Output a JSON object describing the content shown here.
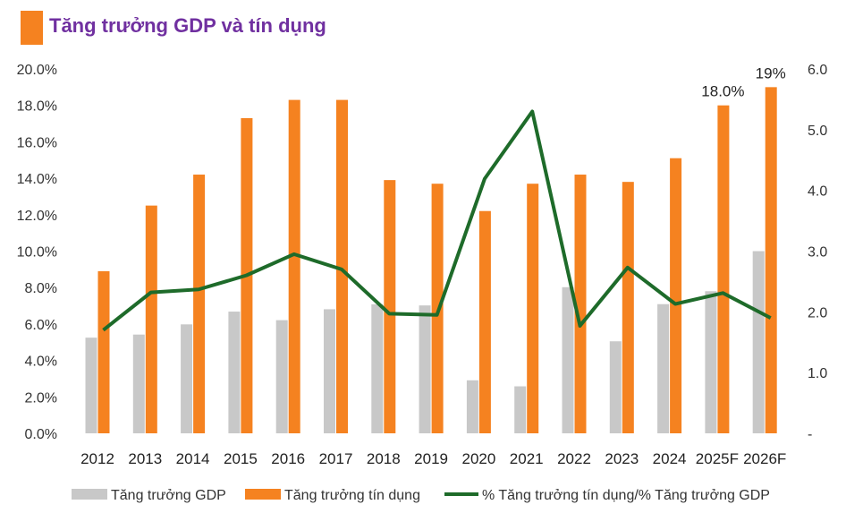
{
  "colors": {
    "title": "#7030A0",
    "accent_block": "#F58220",
    "gdp": "#C8C8C8",
    "credit": "#F58220",
    "ratio": "#1E6B2A"
  },
  "chart_data": {
    "type": "bar",
    "title": "Tăng trưởng GDP và tín dụng",
    "categories": [
      "2012",
      "2013",
      "2014",
      "2015",
      "2016",
      "2017",
      "2018",
      "2019",
      "2020",
      "2021",
      "2022",
      "2023",
      "2024",
      "2025F",
      "2026F"
    ],
    "series": [
      {
        "name": "Tăng trưởng GDP",
        "axis": "left",
        "kind": "bar",
        "values": [
          5.25,
          5.42,
          5.98,
          6.68,
          6.21,
          6.81,
          7.08,
          7.02,
          2.91,
          2.58,
          8.02,
          5.05,
          7.09,
          7.8,
          10.0
        ]
      },
      {
        "name": "Tăng trưởng tín dụng",
        "axis": "left",
        "kind": "bar",
        "values": [
          8.9,
          12.5,
          14.2,
          17.3,
          18.3,
          18.3,
          13.9,
          13.7,
          12.2,
          13.7,
          14.2,
          13.8,
          15.1,
          18.0,
          19.0
        ]
      },
      {
        "name": "% Tăng trưởng tín dụng/% Tăng trưởng GDP",
        "axis": "right",
        "kind": "line",
        "values": [
          1.7,
          2.32,
          2.37,
          2.6,
          2.95,
          2.7,
          1.97,
          1.95,
          4.19,
          5.3,
          1.77,
          2.73,
          2.13,
          2.31,
          1.9
        ]
      }
    ],
    "left_axis": {
      "ylim": [
        0,
        20
      ],
      "ticks": [
        "0.0%",
        "2.0%",
        "4.0%",
        "6.0%",
        "8.0%",
        "10.0%",
        "12.0%",
        "14.0%",
        "16.0%",
        "18.0%",
        "20.0%"
      ]
    },
    "right_axis": {
      "ylim": [
        0,
        6
      ],
      "ticks": [
        "-",
        "1.0",
        "2.0",
        "3.0",
        "4.0",
        "5.0",
        "6.0"
      ]
    },
    "annotations": [
      {
        "category": "2025F",
        "series": "Tăng trưởng tín dụng",
        "text": "18.0%"
      },
      {
        "category": "2026F",
        "series": "Tăng trưởng tín dụng",
        "text": "19%"
      }
    ],
    "legend": {
      "position": "bottom",
      "items": [
        "Tăng trưởng GDP",
        "Tăng trưởng tín dụng",
        "% Tăng trưởng tín dụng/% Tăng trưởng GDP"
      ]
    }
  }
}
